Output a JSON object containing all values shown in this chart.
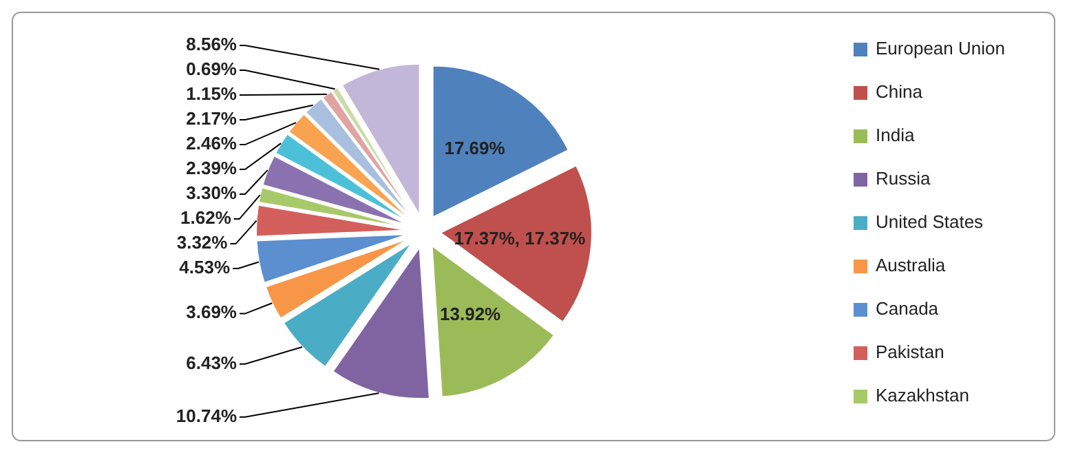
{
  "chart_data": {
    "type": "pie",
    "categories": [
      "European Union",
      "China",
      "India",
      "Russia",
      "United States",
      "Australia",
      "Canada",
      "Pakistan",
      "Kazakhstan",
      null,
      null,
      null,
      null,
      null,
      null,
      null
    ],
    "values": [
      17.69,
      17.37,
      13.92,
      10.74,
      6.43,
      3.69,
      4.53,
      3.32,
      1.62,
      3.3,
      2.39,
      2.46,
      2.17,
      1.15,
      0.69,
      8.56
    ],
    "value_labels": [
      "17.69%",
      "17.37%, 17.37%",
      "13.92%",
      "10.74%",
      "6.43%",
      "3.69%",
      "4.53%",
      "3.32%",
      "1.62%",
      "3.30%",
      "2.39%",
      "2.46%",
      "2.17%",
      "1.15%",
      "0.69%",
      "8.56%"
    ],
    "colors": [
      "#4f81bd",
      "#c0504d",
      "#9bbb59",
      "#8064a2",
      "#4bacc6",
      "#f79646",
      "#5b8fd0",
      "#d35f5c",
      "#a7c96a",
      "#8a72b0",
      "#4cc0d8",
      "#f9a24f",
      "#a9bfdf",
      "#e0a3a1",
      "#c9dca6",
      "#c3b7d9"
    ],
    "legend": "right"
  }
}
